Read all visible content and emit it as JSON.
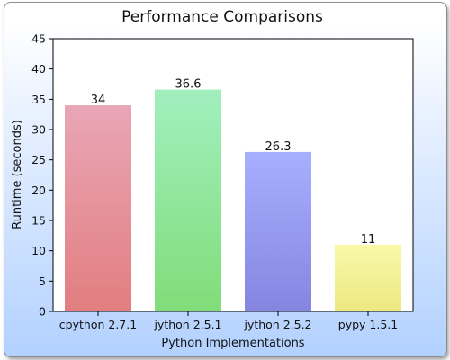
{
  "chart_data": {
    "type": "bar",
    "title": "Performance Comparisons",
    "xlabel": "Python Implementations",
    "ylabel": "Runtime (seconds)",
    "categories": [
      "cpython 2.7.1",
      "jython 2.5.1",
      "jython 2.5.2",
      "pypy 1.5.1"
    ],
    "values": [
      34,
      36.6,
      26.3,
      11
    ],
    "data_labels": [
      "34",
      "36.6",
      "26.3",
      "11"
    ],
    "ylim": [
      0,
      45
    ],
    "yticks": [
      0,
      5,
      10,
      15,
      20,
      25,
      30,
      35,
      40,
      45
    ],
    "grid": false,
    "legend": "none",
    "colors": [
      {
        "top": "#e9a6b6",
        "bottom": "#e27e80"
      },
      {
        "top": "#a2efbf",
        "bottom": "#80dd78"
      },
      {
        "top": "#a7afff",
        "bottom": "#8585e0"
      },
      {
        "top": "#f9f9a9",
        "bottom": "#ece882"
      }
    ]
  }
}
